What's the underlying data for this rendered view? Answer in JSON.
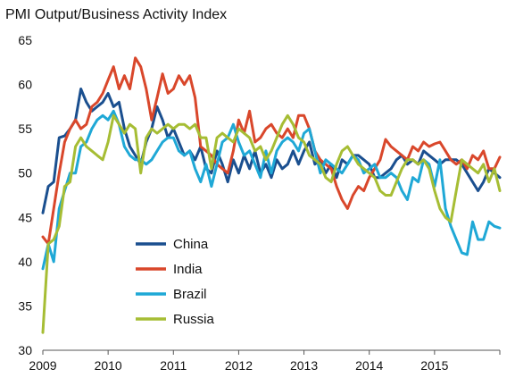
{
  "chart_data": {
    "type": "line",
    "title": "PMI Output/Business Activity Index",
    "xlabel": "",
    "ylabel": "",
    "xlim": [
      2009,
      2016
    ],
    "ylim": [
      30,
      65
    ],
    "x_ticks": [
      "2009",
      "2010",
      "2011",
      "2012",
      "2013",
      "2014",
      "2015"
    ],
    "y_ticks": [
      "30",
      "35",
      "40",
      "45",
      "50",
      "55",
      "60",
      "65"
    ],
    "grid": false,
    "legend_position": "lower-left",
    "series": [
      {
        "name": "China",
        "color": "#1a4f8f",
        "x": [
          2009.0,
          2009.083,
          2009.167,
          2009.25,
          2009.333,
          2009.417,
          2009.5,
          2009.583,
          2009.667,
          2009.75,
          2009.833,
          2009.917,
          2010.0,
          2010.083,
          2010.167,
          2010.25,
          2010.333,
          2010.417,
          2010.5,
          2010.583,
          2010.667,
          2010.75,
          2010.833,
          2010.917,
          2011.0,
          2011.083,
          2011.167,
          2011.25,
          2011.333,
          2011.417,
          2011.5,
          2011.583,
          2011.667,
          2011.75,
          2011.833,
          2011.917,
          2012.0,
          2012.083,
          2012.167,
          2012.25,
          2012.333,
          2012.417,
          2012.5,
          2012.583,
          2012.667,
          2012.75,
          2012.833,
          2012.917,
          2013.0,
          2013.083,
          2013.167,
          2013.25,
          2013.333,
          2013.417,
          2013.5,
          2013.583,
          2013.667,
          2013.75,
          2013.833,
          2013.917,
          2014.0,
          2014.083,
          2014.167,
          2014.25,
          2014.333,
          2014.417,
          2014.5,
          2014.583,
          2014.667,
          2014.75,
          2014.833,
          2014.917,
          2015.0,
          2015.083,
          2015.167,
          2015.25,
          2015.333,
          2015.417,
          2015.5,
          2015.583,
          2015.667,
          2015.75,
          2015.833,
          2015.917,
          2016.0
        ],
        "y": [
          45.5,
          48.5,
          49.0,
          54.0,
          54.2,
          55.0,
          56.0,
          59.5,
          58.0,
          57.0,
          57.5,
          58.0,
          59.0,
          57.5,
          58.0,
          55.0,
          53.0,
          52.0,
          51.0,
          53.5,
          55.0,
          57.5,
          56.0,
          54.0,
          55.0,
          53.5,
          52.0,
          52.5,
          51.5,
          53.0,
          50.5,
          50.0,
          52.5,
          51.0,
          49.0,
          51.5,
          50.0,
          52.0,
          50.5,
          52.5,
          50.0,
          51.0,
          49.5,
          51.5,
          50.5,
          51.0,
          52.5,
          51.0,
          52.5,
          53.5,
          51.0,
          51.5,
          50.0,
          51.0,
          49.5,
          51.5,
          51.0,
          52.0,
          52.0,
          51.5,
          51.0,
          49.5,
          49.5,
          50.0,
          50.5,
          51.5,
          52.0,
          51.0,
          51.5,
          51.0,
          52.5,
          52.0,
          51.5,
          51.0,
          51.5,
          51.5,
          51.5,
          51.0,
          50.0,
          49.0,
          48.0,
          49.0,
          50.5,
          50.0,
          49.5
        ]
      },
      {
        "name": "India",
        "color": "#d9472b",
        "x": [
          2009.0,
          2009.083,
          2009.167,
          2009.25,
          2009.333,
          2009.417,
          2009.5,
          2009.583,
          2009.667,
          2009.75,
          2009.833,
          2009.917,
          2010.0,
          2010.083,
          2010.167,
          2010.25,
          2010.333,
          2010.417,
          2010.5,
          2010.583,
          2010.667,
          2010.75,
          2010.833,
          2010.917,
          2011.0,
          2011.083,
          2011.167,
          2011.25,
          2011.333,
          2011.417,
          2011.5,
          2011.583,
          2011.667,
          2011.75,
          2011.833,
          2011.917,
          2012.0,
          2012.083,
          2012.167,
          2012.25,
          2012.333,
          2012.417,
          2012.5,
          2012.583,
          2012.667,
          2012.75,
          2012.833,
          2012.917,
          2013.0,
          2013.083,
          2013.167,
          2013.25,
          2013.333,
          2013.417,
          2013.5,
          2013.583,
          2013.667,
          2013.75,
          2013.833,
          2013.917,
          2014.0,
          2014.083,
          2014.167,
          2014.25,
          2014.333,
          2014.417,
          2014.5,
          2014.583,
          2014.667,
          2014.75,
          2014.833,
          2014.917,
          2015.0,
          2015.083,
          2015.167,
          2015.25,
          2015.333,
          2015.417,
          2015.5,
          2015.583,
          2015.667,
          2015.75,
          2015.833,
          2015.917,
          2016.0
        ],
        "y": [
          42.8,
          42.0,
          46.0,
          50.0,
          53.5,
          55.0,
          56.0,
          55.0,
          55.5,
          57.5,
          58.0,
          59.0,
          60.5,
          62.0,
          59.5,
          61.0,
          59.5,
          63.0,
          62.0,
          59.5,
          56.0,
          58.5,
          61.2,
          59.0,
          59.5,
          61.0,
          60.0,
          61.0,
          58.5,
          53.0,
          52.5,
          52.0,
          51.0,
          50.5,
          50.0,
          52.5,
          56.0,
          54.5,
          57.0,
          53.5,
          54.0,
          55.0,
          55.5,
          54.5,
          54.0,
          55.0,
          54.0,
          56.5,
          56.5,
          55.0,
          52.5,
          51.5,
          51.0,
          50.5,
          48.5,
          47.0,
          46.0,
          47.5,
          48.5,
          48.0,
          49.5,
          50.5,
          51.5,
          53.8,
          53.0,
          52.5,
          52.0,
          51.5,
          53.0,
          52.5,
          53.5,
          53.0,
          53.3,
          53.5,
          52.5,
          51.5,
          51.0,
          51.5,
          50.5,
          52.0,
          51.5,
          52.5,
          50.5,
          50.5,
          51.8
        ]
      },
      {
        "name": "Brazil",
        "color": "#1fa8d6",
        "x": [
          2009.0,
          2009.083,
          2009.167,
          2009.25,
          2009.333,
          2009.417,
          2009.5,
          2009.583,
          2009.667,
          2009.75,
          2009.833,
          2009.917,
          2010.0,
          2010.083,
          2010.167,
          2010.25,
          2010.333,
          2010.417,
          2010.5,
          2010.583,
          2010.667,
          2010.75,
          2010.833,
          2010.917,
          2011.0,
          2011.083,
          2011.167,
          2011.25,
          2011.333,
          2011.417,
          2011.5,
          2011.583,
          2011.667,
          2011.75,
          2011.833,
          2011.917,
          2012.0,
          2012.083,
          2012.167,
          2012.25,
          2012.333,
          2012.417,
          2012.5,
          2012.583,
          2012.667,
          2012.75,
          2012.833,
          2012.917,
          2013.0,
          2013.083,
          2013.167,
          2013.25,
          2013.333,
          2013.417,
          2013.5,
          2013.583,
          2013.667,
          2013.75,
          2013.833,
          2013.917,
          2014.0,
          2014.083,
          2014.167,
          2014.25,
          2014.333,
          2014.417,
          2014.5,
          2014.583,
          2014.667,
          2014.75,
          2014.833,
          2014.917,
          2015.0,
          2015.083,
          2015.167,
          2015.25,
          2015.333,
          2015.417,
          2015.5,
          2015.583,
          2015.667,
          2015.75,
          2015.833,
          2015.917,
          2016.0
        ],
        "y": [
          39.2,
          42.0,
          40.0,
          46.0,
          48.0,
          50.0,
          50.0,
          53.0,
          53.5,
          55.0,
          56.0,
          56.5,
          56.0,
          57.0,
          55.5,
          53.0,
          52.0,
          51.5,
          51.5,
          51.0,
          51.5,
          52.5,
          53.5,
          54.0,
          54.0,
          52.5,
          52.0,
          52.5,
          50.5,
          49.0,
          51.0,
          48.5,
          51.0,
          53.5,
          54.0,
          55.5,
          53.5,
          52.0,
          52.5,
          51.0,
          49.5,
          52.5,
          50.0,
          52.5,
          53.5,
          54.0,
          53.5,
          52.5,
          54.5,
          55.0,
          52.5,
          50.0,
          51.5,
          51.0,
          50.5,
          50.0,
          51.0,
          52.0,
          51.5,
          50.0,
          50.5,
          51.0,
          49.5,
          49.5,
          50.0,
          49.5,
          48.0,
          47.0,
          49.5,
          49.0,
          51.5,
          51.0,
          48.5,
          51.5,
          46.0,
          44.0,
          42.5,
          41.0,
          40.8,
          44.5,
          42.5,
          42.5,
          44.5,
          44.0,
          43.8
        ]
      },
      {
        "name": "Russia",
        "color": "#a6bd34",
        "x": [
          2009.0,
          2009.083,
          2009.167,
          2009.25,
          2009.333,
          2009.417,
          2009.5,
          2009.583,
          2009.667,
          2009.75,
          2009.833,
          2009.917,
          2010.0,
          2010.083,
          2010.167,
          2010.25,
          2010.333,
          2010.417,
          2010.5,
          2010.583,
          2010.667,
          2010.75,
          2010.833,
          2010.917,
          2011.0,
          2011.083,
          2011.167,
          2011.25,
          2011.333,
          2011.417,
          2011.5,
          2011.583,
          2011.667,
          2011.75,
          2011.833,
          2011.917,
          2012.0,
          2012.083,
          2012.167,
          2012.25,
          2012.333,
          2012.417,
          2012.5,
          2012.583,
          2012.667,
          2012.75,
          2012.833,
          2012.917,
          2013.0,
          2013.083,
          2013.167,
          2013.25,
          2013.333,
          2013.417,
          2013.5,
          2013.583,
          2013.667,
          2013.75,
          2013.833,
          2013.917,
          2014.0,
          2014.083,
          2014.167,
          2014.25,
          2014.333,
          2014.417,
          2014.5,
          2014.583,
          2014.667,
          2014.75,
          2014.833,
          2014.917,
          2015.0,
          2015.083,
          2015.167,
          2015.25,
          2015.333,
          2015.417,
          2015.5,
          2015.583,
          2015.667,
          2015.75,
          2015.833,
          2015.917,
          2016.0
        ],
        "y": [
          32.0,
          42.0,
          42.5,
          44.0,
          48.5,
          49.0,
          53.0,
          54.0,
          53.0,
          52.5,
          52.0,
          51.5,
          53.5,
          56.5,
          55.5,
          54.5,
          55.5,
          55.0,
          50.0,
          54.0,
          55.0,
          54.5,
          55.0,
          55.5,
          55.0,
          55.5,
          55.5,
          55.0,
          55.5,
          54.0,
          54.0,
          50.5,
          54.0,
          54.5,
          54.0,
          53.5,
          55.0,
          54.5,
          54.0,
          52.5,
          53.0,
          51.5,
          52.5,
          54.0,
          55.5,
          56.5,
          55.5,
          54.0,
          53.5,
          52.0,
          51.5,
          51.0,
          49.5,
          49.0,
          51.0,
          52.5,
          53.0,
          52.0,
          51.0,
          50.5,
          50.0,
          49.5,
          48.0,
          47.5,
          47.5,
          49.0,
          50.5,
          51.5,
          51.5,
          51.0,
          51.5,
          50.5,
          48.0,
          46.0,
          45.0,
          44.5,
          48.0,
          51.5,
          51.0,
          50.5,
          50.0,
          51.0,
          49.0,
          50.5,
          48.0
        ]
      }
    ]
  }
}
